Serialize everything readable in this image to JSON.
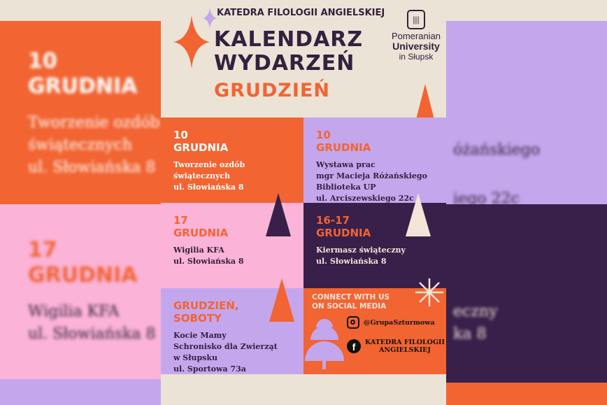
{
  "header": {
    "department": "KATEDRA FILOLOGII ANGIELSKIEJ",
    "title_line1": "KALENDARZ",
    "title_line2": "WYDARZEŃ",
    "month": "GRUDZIEŃ"
  },
  "logo": {
    "line1": "Pomeranian",
    "line2": "University",
    "line3": "in Słupsk"
  },
  "events": [
    {
      "date": [
        "10",
        "GRUDNIA"
      ],
      "lines": [
        "Tworzenie ozdób",
        "świątecznych",
        "ul. Słowiańska 8"
      ],
      "bg": "#f26432",
      "date_color": "#ffffff",
      "text_color": "#ffffff"
    },
    {
      "date": [
        "10",
        "GRUDNIA"
      ],
      "lines": [
        "Wystawa prac",
        "mgr Macieja Różańskiego",
        "Biblioteka UP",
        "ul. Arciszewskiego 22c"
      ],
      "bg": "#c4a6ec",
      "date_color": "#f26432",
      "text_color": "#34203f"
    },
    {
      "date": [
        "17",
        "GRUDNIA"
      ],
      "lines": [
        "Wigilia KFA",
        "ul. Słowiańska 8"
      ],
      "bg": "#fbb3d7",
      "date_color": "#f26432",
      "text_color": "#34203f"
    },
    {
      "date": [
        "16-17",
        "GRUDNIA"
      ],
      "lines": [
        "Kiermasz świąteczny",
        "ul. Słowiańska 8"
      ],
      "bg": "#38204a",
      "date_color": "#f26432",
      "text_color": "#f3e4d8"
    },
    {
      "date": [
        "GRUDZIEŃ,",
        "SOBOTY"
      ],
      "lines": [
        "Kocie Mamy",
        "Schronisko dla Zwierząt",
        "w Słupsku",
        "ul. Sportowa 73a"
      ],
      "bg": "#c4a6ec",
      "date_color": "#f26432",
      "text_color": "#34203f"
    }
  ],
  "social": {
    "heading_line1": "CONNECT WITH US",
    "heading_line2": "ON SOCIAL MEDIA",
    "instagram": "@GrupaSzturmowa",
    "facebook_line1": "KATEDRA FILOLOGII",
    "facebook_line2": "ANGIELSKIEJ",
    "icons": [
      "instagram-icon",
      "facebook-icon"
    ]
  },
  "colors": {
    "orange": "#f26432",
    "purple": "#38204a",
    "lavender": "#c4a6ec",
    "pink": "#fbb3d7",
    "beige": "#ebe3d5"
  }
}
